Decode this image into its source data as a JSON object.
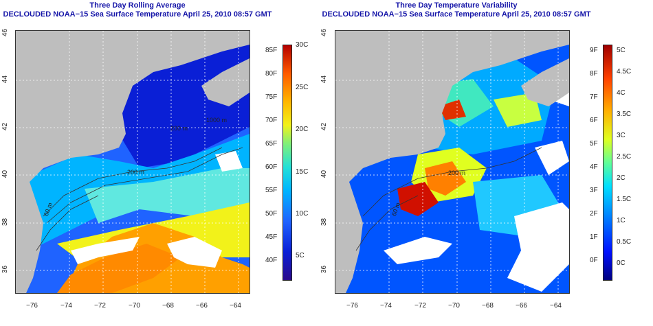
{
  "left_panel": {
    "title_line1": "Three Day Rolling Average",
    "title_line2": "DECLOUDED NOAA−15 Sea Surface Temperature April 25, 2010 08:57 GMT",
    "lon_labels": [
      "−76",
      "−74",
      "−72",
      "−70",
      "−68",
      "−66",
      "−64"
    ],
    "lat_labels": [
      "46",
      "44",
      "42",
      "40",
      "38",
      "36"
    ],
    "contour_labels": [
      "1000 m",
      "200 m",
      "200 m",
      "60 m",
      "1000 m"
    ],
    "colorbar_f": [
      "85F",
      "80F",
      "75F",
      "70F",
      "65F",
      "60F",
      "55F",
      "50F",
      "45F",
      "40F"
    ],
    "colorbar_c": [
      "30C",
      "25C",
      "20C",
      "15C",
      "10C",
      "5C"
    ]
  },
  "right_panel": {
    "title_line1": "Three Day Temperature Variability",
    "title_line2": "DECLOUDED NOAA−15 Sea Surface Temperature April 25, 2010 08:57 GMT",
    "lon_labels": [
      "−76",
      "−74",
      "−72",
      "−70",
      "−68",
      "−66",
      "−64"
    ],
    "lat_labels": [
      "46",
      "44",
      "42",
      "40",
      "38",
      "36"
    ],
    "contour_labels": [
      "200 m",
      "60 m"
    ],
    "colorbar_f": [
      "9F",
      "8F",
      "7F",
      "6F",
      "5F",
      "4F",
      "3F",
      "2F",
      "1F",
      "0F"
    ],
    "colorbar_c": [
      "5C",
      "4.5C",
      "4C",
      "3.5C",
      "3C",
      "2.5C",
      "2C",
      "1.5C",
      "1C",
      "0.5C",
      "0C"
    ]
  },
  "colors": {
    "land": "#bebebe",
    "title": "#1515a8",
    "sst_scale": [
      "#2a0a8a",
      "#0a1fd6",
      "#1f63ff",
      "#00b4ff",
      "#22e0d8",
      "#7ff07a",
      "#f2f21a",
      "#ffb600",
      "#ff5a00",
      "#b40000"
    ],
    "var_scale": [
      "#000080",
      "#0010ff",
      "#0088ff",
      "#00e0ff",
      "#60ff98",
      "#e0ff20",
      "#ffb000",
      "#ff4000",
      "#a00000"
    ]
  }
}
